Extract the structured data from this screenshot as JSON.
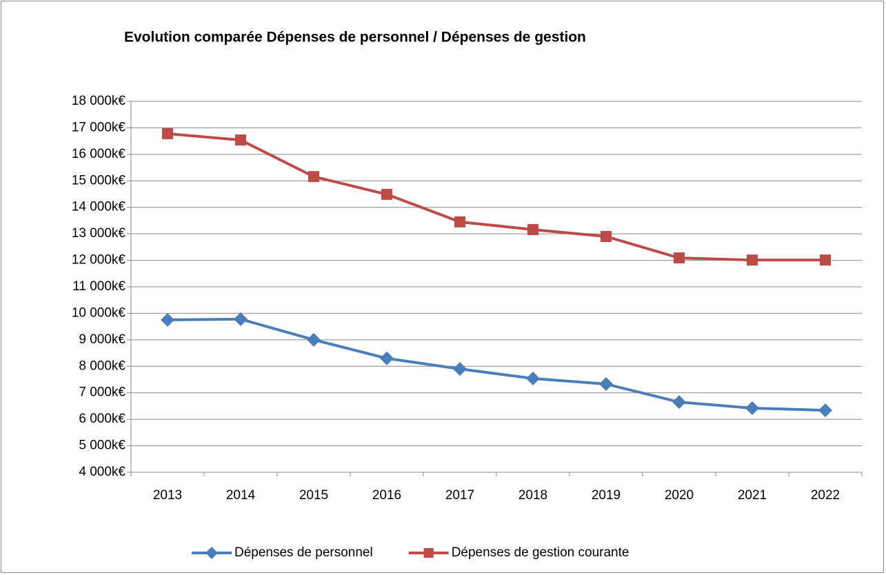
{
  "chart_data": {
    "type": "line",
    "title": "Evolution comparée Dépenses de personnel / Dépenses de gestion",
    "categories": [
      "2013",
      "2014",
      "2015",
      "2016",
      "2017",
      "2018",
      "2019",
      "2020",
      "2021",
      "2022"
    ],
    "series": [
      {
        "name": "Dépenses de personnel",
        "color": "#4a7ebb",
        "marker": "diamond",
        "values": [
          9750,
          9780,
          9000,
          8300,
          7900,
          7540,
          7330,
          6650,
          6420,
          6340
        ]
      },
      {
        "name": "Dépenses de gestion courante",
        "color": "#be4b48",
        "marker": "square",
        "values": [
          16780,
          16540,
          15160,
          14490,
          13450,
          13160,
          12900,
          12090,
          12010,
          12010
        ]
      }
    ],
    "ylim": [
      4000,
      18000
    ],
    "yticks": [
      {
        "value": 4000,
        "label": "4 000k€"
      },
      {
        "value": 5000,
        "label": "5 000k€"
      },
      {
        "value": 6000,
        "label": "6 000k€"
      },
      {
        "value": 7000,
        "label": "7 000k€"
      },
      {
        "value": 8000,
        "label": "8 000k€"
      },
      {
        "value": 9000,
        "label": "9 000k€"
      },
      {
        "value": 10000,
        "label": "10 000k€"
      },
      {
        "value": 11000,
        "label": "11 000k€"
      },
      {
        "value": 12000,
        "label": "12 000k€"
      },
      {
        "value": 13000,
        "label": "13 000k€"
      },
      {
        "value": 14000,
        "label": "14 000k€"
      },
      {
        "value": 15000,
        "label": "15 000k€"
      },
      {
        "value": 16000,
        "label": "16 000k€"
      },
      {
        "value": 17000,
        "label": "17 000k€"
      },
      {
        "value": 18000,
        "label": "18 000k€"
      }
    ],
    "grid": true,
    "legend": "bottom"
  }
}
